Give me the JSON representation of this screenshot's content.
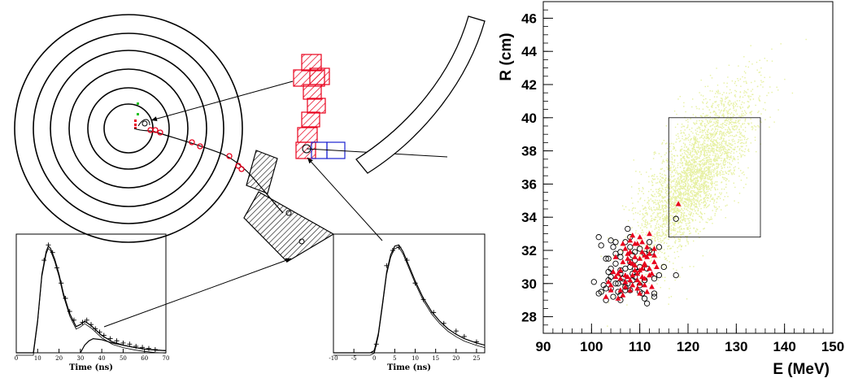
{
  "chart_data": [
    {
      "type": "line",
      "xlabel": "Time (ns)",
      "x_ticks": [
        "0",
        "10",
        "20",
        "30",
        "40",
        "50",
        "60",
        "70"
      ],
      "xlim": [
        0,
        70
      ],
      "series": [
        {
          "x": [
            0,
            8,
            10,
            12,
            14,
            15,
            16,
            18,
            20,
            22,
            25,
            28,
            30,
            32,
            35,
            40,
            45,
            50,
            55,
            60,
            65,
            70
          ],
          "y": [
            0,
            0,
            0.3,
            0.72,
            0.93,
            0.98,
            0.96,
            0.86,
            0.72,
            0.55,
            0.36,
            0.24,
            0.26,
            0.29,
            0.25,
            0.16,
            0.1,
            0.07,
            0.05,
            0.035,
            0.025,
            0.02
          ]
        },
        {
          "x": [
            30,
            32,
            34,
            36,
            40,
            45,
            50,
            55,
            60,
            65,
            70
          ],
          "y": [
            0,
            0.07,
            0.11,
            0.13,
            0.12,
            0.09,
            0.07,
            0.05,
            0.035,
            0.025,
            0.02
          ]
        }
      ],
      "markers": {
        "x": [
          13,
          15,
          17,
          19,
          21,
          23,
          25,
          27,
          31,
          33,
          35,
          37,
          39,
          41,
          44,
          47,
          50,
          53,
          56,
          59,
          62,
          65
        ],
        "y": [
          0.85,
          0.99,
          0.92,
          0.78,
          0.64,
          0.5,
          0.38,
          0.3,
          0.28,
          0.3,
          0.26,
          0.22,
          0.19,
          0.16,
          0.13,
          0.11,
          0.09,
          0.08,
          0.06,
          0.05,
          0.04,
          0.03
        ]
      }
    },
    {
      "type": "line",
      "xlabel": "Time (ns)",
      "x_ticks": [
        "-10",
        "-5",
        "0",
        "5",
        "10",
        "15",
        "20",
        "25"
      ],
      "xlim": [
        -10,
        27
      ],
      "series": [
        {
          "x": [
            -10,
            -1,
            0,
            1,
            2,
            3,
            4,
            5,
            6,
            7,
            8,
            10,
            12,
            14,
            16,
            18,
            20,
            22,
            25,
            27
          ],
          "y": [
            0,
            0,
            0.02,
            0.18,
            0.45,
            0.74,
            0.9,
            0.98,
            0.99,
            0.93,
            0.84,
            0.66,
            0.5,
            0.38,
            0.29,
            0.22,
            0.17,
            0.13,
            0.09,
            0.07
          ]
        }
      ],
      "markers": {
        "x": [
          0.5,
          3,
          4.5,
          6,
          8,
          10,
          12,
          14.5,
          17,
          20,
          22,
          25
        ],
        "y": [
          0.08,
          0.8,
          0.94,
          0.97,
          0.85,
          0.64,
          0.49,
          0.37,
          0.27,
          0.2,
          0.15,
          0.1
        ]
      }
    },
    {
      "type": "scatter",
      "xlabel": "E (MeV)",
      "ylabel": "R (cm)",
      "xlim": [
        90,
        150
      ],
      "ylim": [
        27,
        47
      ],
      "x_ticks": [
        "90",
        "100",
        "110",
        "120",
        "130",
        "140",
        "150"
      ],
      "y_ticks": [
        "28",
        "30",
        "32",
        "34",
        "36",
        "38",
        "40",
        "42",
        "44",
        "46"
      ],
      "signal_cloud": {
        "center_E": 121,
        "center_R": 36.5,
        "spread_E": 6,
        "spread_R": 2.6,
        "color": "#e6f0a0"
      },
      "selection_box": {
        "E": [
          116,
          135
        ],
        "R": [
          32.8,
          40
        ]
      },
      "series": [
        {
          "marker": "open-circle",
          "color": "#000000",
          "x": [
            101.5,
            102,
            103,
            103.5,
            104,
            104.5,
            105,
            105.5,
            106,
            106.5,
            107,
            107.5,
            108,
            108.5,
            109,
            110,
            111,
            112,
            113,
            114,
            102,
            103,
            104,
            105,
            106,
            107,
            108,
            109,
            110,
            111,
            112,
            113,
            104,
            105,
            106,
            107,
            108,
            109,
            110,
            111,
            100.5,
            103.5,
            105,
            106,
            107.5,
            108.5,
            110.5,
            111.5,
            115,
            117.5,
            117.5,
            103,
            104,
            106,
            111,
            105.5,
            108,
            109.5,
            112.5,
            102.5,
            104.5,
            106.5,
            107,
            109,
            110,
            113,
            101.5,
            103.5,
            106,
            108,
            108.5,
            111.5,
            114
          ],
          "y": [
            32.8,
            32.3,
            31.5,
            30.2,
            29.7,
            32.2,
            31.8,
            29.5,
            30.8,
            30.3,
            32.5,
            33.3,
            31.0,
            30.6,
            31.9,
            29.9,
            30.2,
            32.0,
            29.4,
            30.5,
            29.5,
            29.0,
            30.4,
            31.2,
            29.3,
            29.8,
            29.6,
            31.4,
            31.0,
            30.2,
            32.5,
            29.2,
            32.6,
            30.0,
            31.6,
            30.9,
            32.2,
            30.4,
            29.5,
            31.8,
            30.1,
            31.5,
            32.5,
            29.0,
            30.0,
            31.7,
            29.4,
            28.8,
            31.0,
            33.9,
            30.5,
            29.7,
            30.9,
            30.6,
            29.1,
            30.0,
            31.3,
            30.7,
            31.9,
            29.9,
            29.2,
            30.1,
            29.6,
            30.9,
            32.1,
            30.3,
            29.4,
            30.7,
            31.9,
            32.8,
            30.2,
            30.9,
            32.2
          ]
        },
        {
          "marker": "filled-triangle",
          "color": "#e8001c",
          "x": [
            103,
            103.5,
            104,
            105,
            105.5,
            106,
            106.5,
            107,
            107.5,
            108,
            108.5,
            109,
            109.5,
            110,
            110.5,
            111,
            111.5,
            112,
            112.5,
            113,
            104.5,
            106,
            107,
            108,
            109,
            110,
            111,
            112,
            113,
            105,
            106.5,
            107.5,
            108.5,
            109.5,
            110.5,
            111.5,
            107,
            108,
            109,
            110,
            111,
            112,
            106,
            108.5,
            110.5,
            112.5,
            108,
            110,
            109,
            111.5,
            107.5,
            109.5,
            111,
            113,
            106.5,
            108.5,
            110.5,
            104,
            118,
            105.5,
            107,
            109.5,
            112,
            113.5,
            108,
            110,
            111
          ],
          "y": [
            29.2,
            30.1,
            29.6,
            30.4,
            29.1,
            30.8,
            31.3,
            29.8,
            31.5,
            30.2,
            29.9,
            31.1,
            30.6,
            29.4,
            31.9,
            30.3,
            31.6,
            30.9,
            29.8,
            31.3,
            30.7,
            29.6,
            30.5,
            31.9,
            32.4,
            30.0,
            31.2,
            30.5,
            32.1,
            31.6,
            32.4,
            30.4,
            31.2,
            29.7,
            30.9,
            32.2,
            30.1,
            32.6,
            31.6,
            32.8,
            29.9,
            31.8,
            30.3,
            32.9,
            30.4,
            30.6,
            29.6,
            31.5,
            30.8,
            29.5,
            31.8,
            30.2,
            31.1,
            31.7,
            29.3,
            30.5,
            32.5,
            29.9,
            34.8,
            30.6,
            32.1,
            32.4,
            33.0,
            31.0,
            31.3,
            30.8,
            31.7
          ]
        }
      ]
    }
  ]
}
